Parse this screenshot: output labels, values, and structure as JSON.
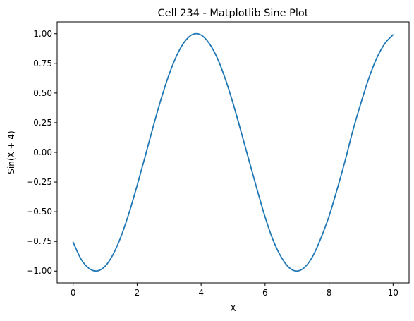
{
  "chart_data": {
    "type": "line",
    "title": "Cell 234 - Matplotlib Sine Plot",
    "xlabel": "X",
    "ylabel": "Sin(X + 4)",
    "xlim": [
      -0.5,
      10.5
    ],
    "ylim": [
      -1.0996,
      1.0996
    ],
    "xticks": [
      0,
      2,
      4,
      6,
      8,
      10
    ],
    "xtick_labels": [
      "0",
      "2",
      "4",
      "6",
      "8",
      "10"
    ],
    "yticks": [
      -1.0,
      -0.75,
      -0.5,
      -0.25,
      0.0,
      0.25,
      0.5,
      0.75,
      1.0
    ],
    "ytick_labels": [
      "−1.00",
      "−0.75",
      "−0.50",
      "−0.25",
      "0.00",
      "0.25",
      "0.50",
      "0.75",
      "1.00"
    ],
    "grid": false,
    "series": [
      {
        "color": "#1f77b4",
        "x": [
          0.0,
          0.25,
          0.5,
          0.75,
          1.0,
          1.25,
          1.5,
          1.75,
          2.0,
          2.25,
          2.5,
          2.75,
          3.0,
          3.25,
          3.5,
          3.75,
          4.0,
          4.25,
          4.5,
          4.75,
          5.0,
          5.25,
          5.5,
          5.75,
          6.0,
          6.25,
          6.5,
          6.75,
          7.0,
          7.25,
          7.5,
          7.75,
          8.0,
          8.25,
          8.5,
          8.75,
          9.0,
          9.25,
          9.5,
          9.75,
          10.0
        ],
        "y": [
          -0.757,
          -0.9,
          -0.978,
          -0.999,
          -0.959,
          -0.859,
          -0.706,
          -0.508,
          -0.279,
          -0.035,
          0.215,
          0.45,
          0.657,
          0.823,
          0.938,
          0.996,
          0.989,
          0.92,
          0.798,
          0.624,
          0.412,
          0.174,
          -0.071,
          -0.313,
          -0.544,
          -0.739,
          -0.88,
          -0.971,
          -1.0,
          -0.965,
          -0.87,
          -0.719,
          -0.537,
          -0.313,
          -0.071,
          0.19,
          0.42,
          0.63,
          0.8,
          0.92,
          0.991
        ]
      }
    ]
  }
}
